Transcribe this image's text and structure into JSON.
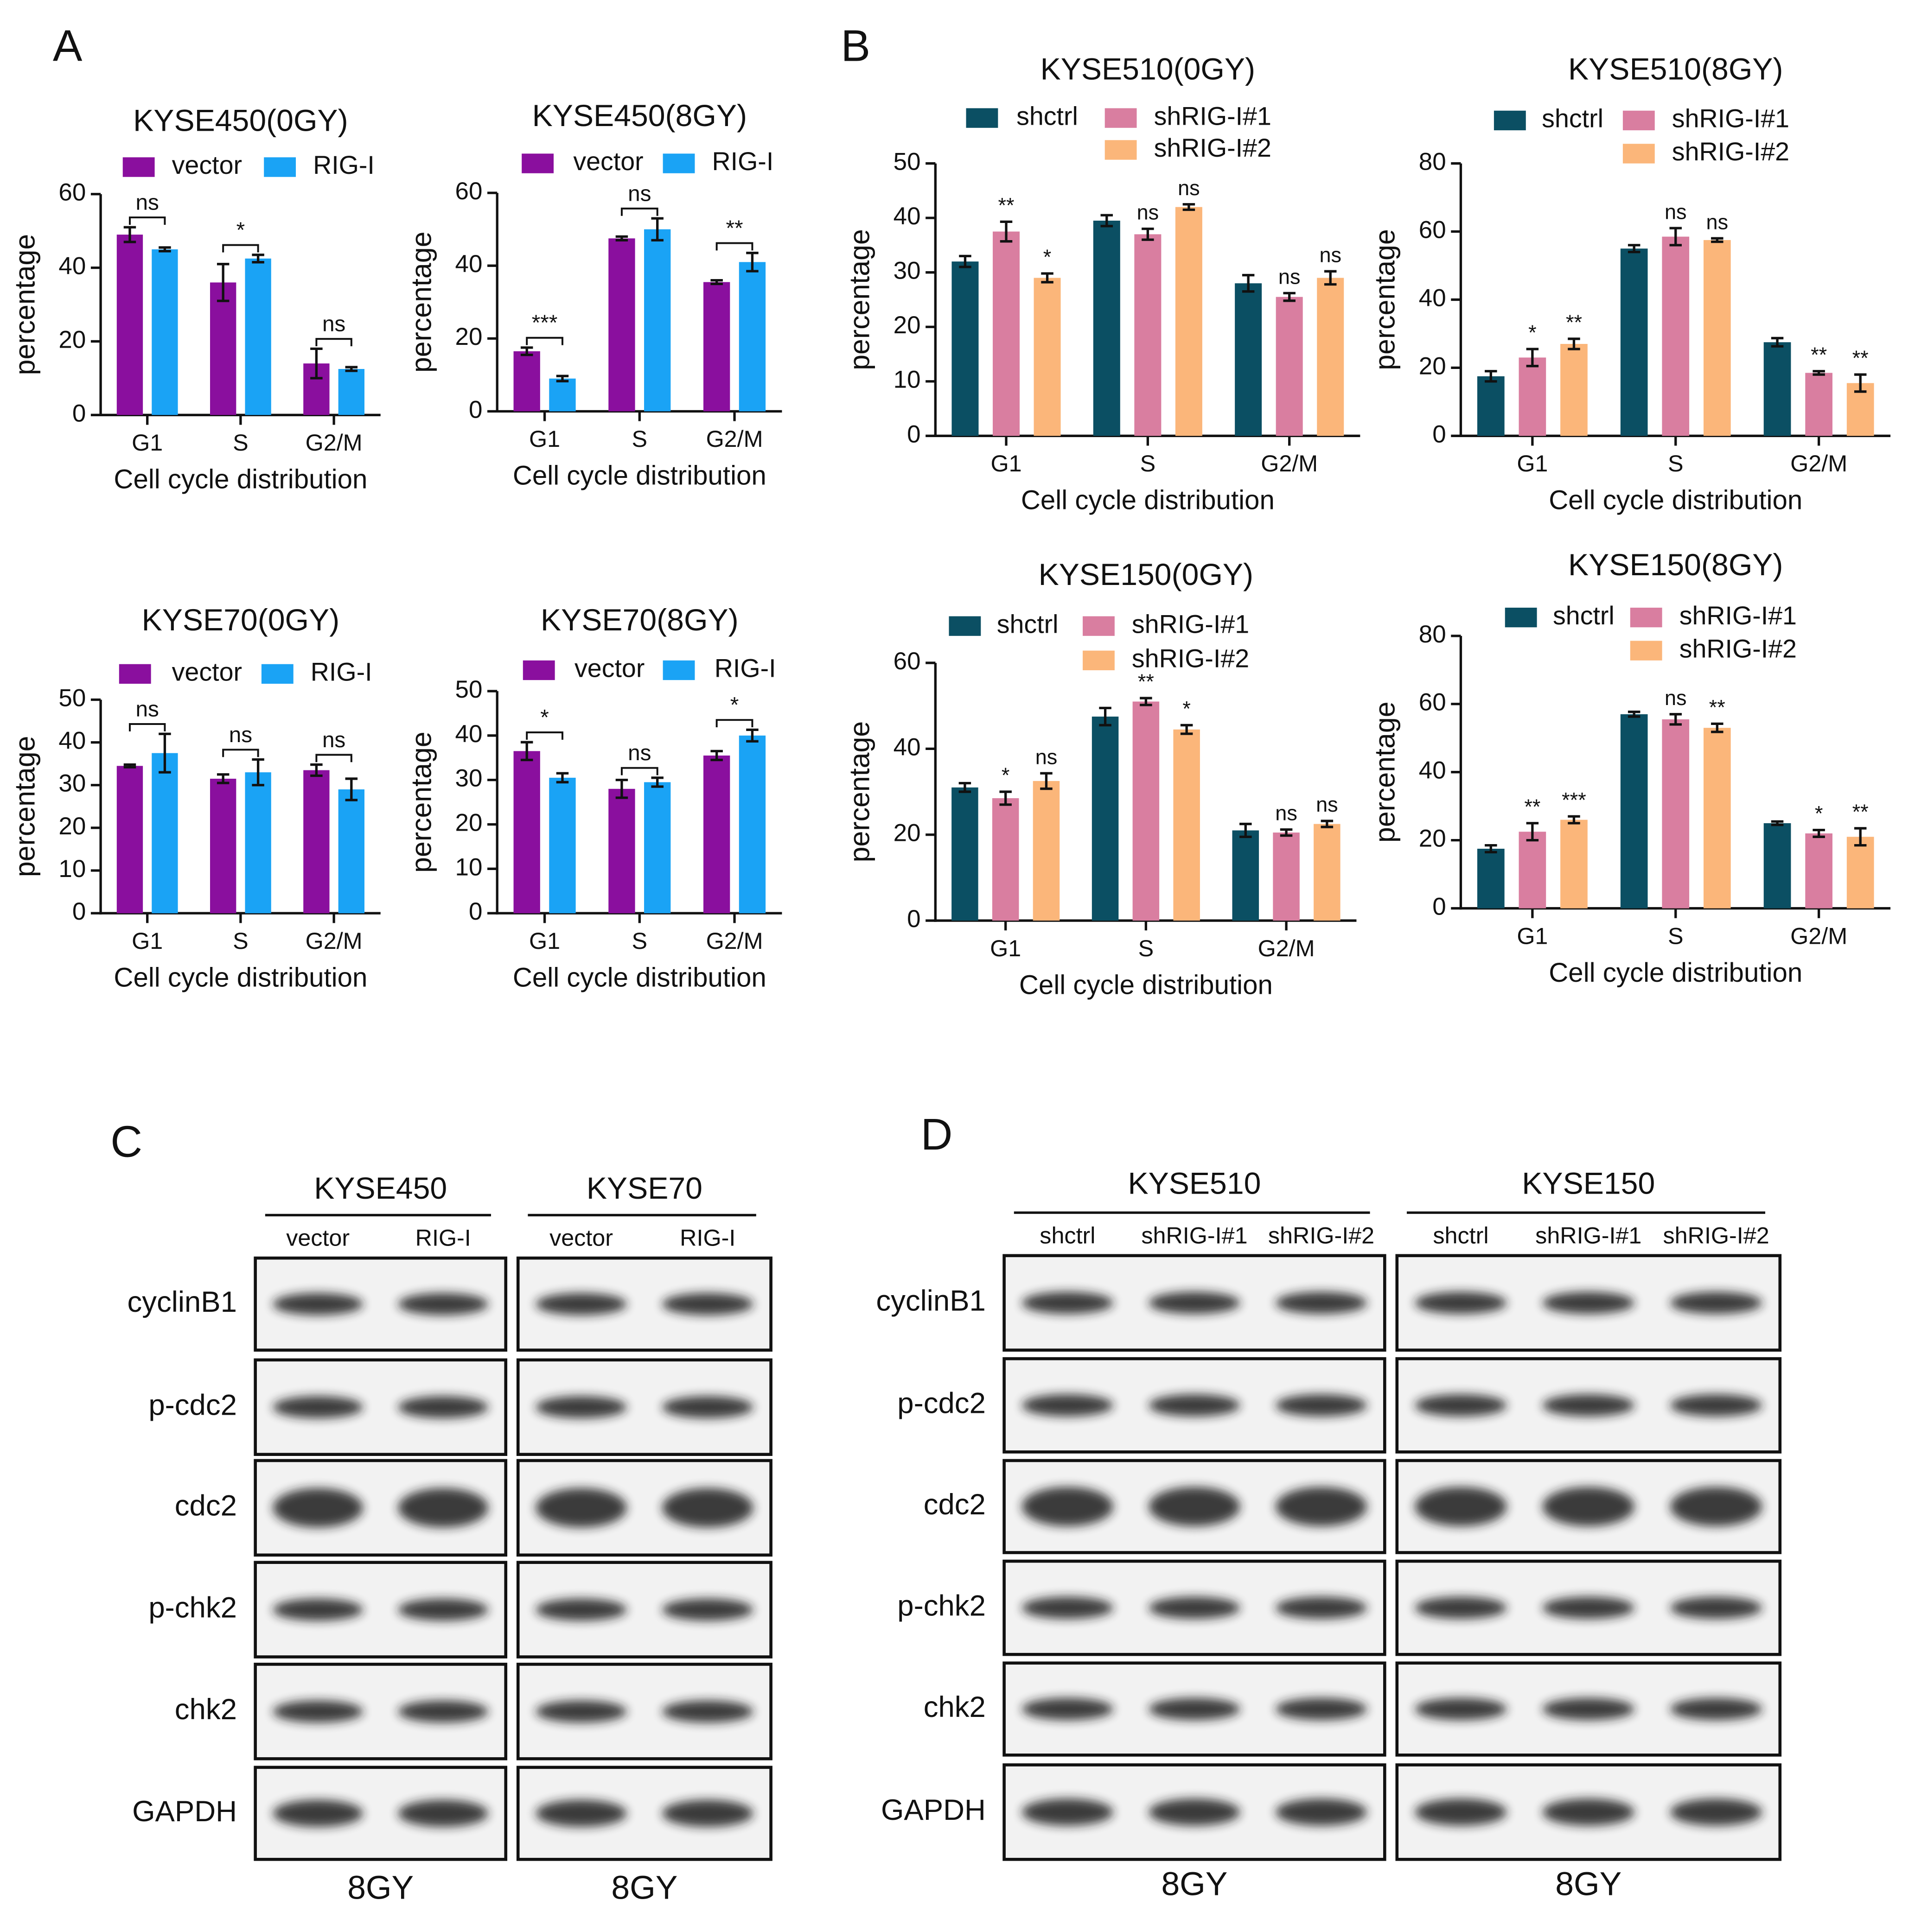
{
  "panel_labels": [
    "A",
    "B",
    "C",
    "D"
  ],
  "chart_data": [
    {
      "type": "bar",
      "title": "KYSE450(0GY)",
      "xlabel": "Cell cycle distribution",
      "ylabel": "percentage",
      "categories": [
        "G1",
        "S",
        "G2/M"
      ],
      "ylim": [
        0,
        60
      ],
      "yticks": [
        0,
        20,
        40,
        60
      ],
      "annotations": [
        "ns",
        "*",
        "ns"
      ],
      "series": [
        {
          "name": "vector",
          "color": "#8a0f9e",
          "values": [
            49,
            36,
            14
          ],
          "errors": [
            2,
            5,
            4
          ]
        },
        {
          "name": "RIG-I",
          "color": "#1aa3f5",
          "values": [
            45,
            42.5,
            12.5
          ],
          "errors": [
            0.5,
            1,
            0.5
          ]
        }
      ]
    },
    {
      "type": "bar",
      "title": "KYSE450(8GY)",
      "xlabel": "Cell cycle distribution",
      "ylabel": "percentage",
      "categories": [
        "G1",
        "S",
        "G2/M"
      ],
      "ylim": [
        0,
        60
      ],
      "yticks": [
        0,
        20,
        40,
        60
      ],
      "annotations": [
        "***",
        "ns",
        "**"
      ],
      "series": [
        {
          "name": "vector",
          "color": "#8a0f9e",
          "values": [
            16.5,
            47.5,
            35.5
          ],
          "errors": [
            1,
            0.5,
            0.5
          ]
        },
        {
          "name": "RIG-I",
          "color": "#1aa3f5",
          "values": [
            9,
            50,
            41
          ],
          "errors": [
            0.7,
            3,
            2.5
          ]
        }
      ]
    },
    {
      "type": "bar",
      "title": "KYSE70(0GY)",
      "xlabel": "Cell cycle distribution",
      "ylabel": "percentage",
      "categories": [
        "G1",
        "S",
        "G2/M"
      ],
      "ylim": [
        0,
        50
      ],
      "yticks": [
        0,
        10,
        20,
        30,
        40,
        50
      ],
      "annotations": [
        "ns",
        "ns",
        "ns"
      ],
      "series": [
        {
          "name": "vector",
          "color": "#8a0f9e",
          "values": [
            34.5,
            31.5,
            33.5
          ],
          "errors": [
            0.3,
            1,
            1.3
          ]
        },
        {
          "name": "RIG-I",
          "color": "#1aa3f5",
          "values": [
            37.5,
            33,
            29
          ],
          "errors": [
            4.5,
            3,
            2.5
          ]
        }
      ]
    },
    {
      "type": "bar",
      "title": "KYSE70(8GY)",
      "xlabel": "Cell cycle distribution",
      "ylabel": "percentage",
      "categories": [
        "G1",
        "S",
        "G2/M"
      ],
      "ylim": [
        0,
        50
      ],
      "yticks": [
        0,
        10,
        20,
        30,
        40,
        50
      ],
      "annotations": [
        "*",
        "ns",
        "*"
      ],
      "series": [
        {
          "name": "vector",
          "color": "#8a0f9e",
          "values": [
            36.5,
            28,
            35.5
          ],
          "errors": [
            2,
            2,
            1
          ]
        },
        {
          "name": "RIG-I",
          "color": "#1aa3f5",
          "values": [
            30.5,
            29.5,
            40
          ],
          "errors": [
            1,
            1,
            1.3
          ]
        }
      ]
    },
    {
      "type": "bar",
      "title": "KYSE510(0GY)",
      "xlabel": "Cell cycle distribution",
      "ylabel": "percentage",
      "categories": [
        "G1",
        "S",
        "G2/M"
      ],
      "ylim": [
        0,
        50
      ],
      "yticks": [
        0,
        10,
        20,
        30,
        40,
        50
      ],
      "series": [
        {
          "name": "shctrl",
          "color": "#0b4f63",
          "values": [
            32,
            39.5,
            28
          ],
          "errors": [
            1,
            1,
            1.5
          ]
        },
        {
          "name": "shRIG-I#1",
          "color": "#d97ea0",
          "values": [
            37.5,
            37,
            25.5
          ],
          "errors": [
            1.8,
            1,
            0.7
          ],
          "annotations": [
            "**",
            "ns",
            "ns"
          ]
        },
        {
          "name": "shRIG-I#2",
          "color": "#fbb67a",
          "values": [
            29,
            42,
            29
          ],
          "errors": [
            0.8,
            0.5,
            1.2
          ],
          "annotations": [
            "*",
            "ns",
            "ns"
          ]
        }
      ]
    },
    {
      "type": "bar",
      "title": "KYSE510(8GY)",
      "xlabel": "Cell cycle distribution",
      "ylabel": "percentage",
      "categories": [
        "G1",
        "S",
        "G2/M"
      ],
      "ylim": [
        0,
        80
      ],
      "yticks": [
        0,
        20,
        40,
        60,
        80
      ],
      "series": [
        {
          "name": "shctrl",
          "color": "#0b4f63",
          "values": [
            17.5,
            55,
            27.5
          ],
          "errors": [
            1.5,
            1,
            1.2
          ]
        },
        {
          "name": "shRIG-I#1",
          "color": "#d97ea0",
          "values": [
            23,
            58.5,
            18.5
          ],
          "errors": [
            2.5,
            2.5,
            0.5
          ],
          "annotations": [
            "*",
            "ns",
            "**"
          ]
        },
        {
          "name": "shRIG-I#2",
          "color": "#fbb67a",
          "values": [
            27,
            57.5,
            15.5
          ],
          "errors": [
            1.5,
            0.5,
            2.5
          ],
          "annotations": [
            "**",
            "ns",
            "**"
          ]
        }
      ]
    },
    {
      "type": "bar",
      "title": "KYSE150(0GY)",
      "xlabel": "Cell cycle distribution",
      "ylabel": "percentage",
      "categories": [
        "G1",
        "S",
        "G2/M"
      ],
      "ylim": [
        0,
        60
      ],
      "yticks": [
        0,
        20,
        40,
        60
      ],
      "series": [
        {
          "name": "shctrl",
          "color": "#0b4f63",
          "values": [
            31,
            47.5,
            21
          ],
          "errors": [
            1,
            2,
            1.5
          ]
        },
        {
          "name": "shRIG-I#1",
          "color": "#d97ea0",
          "values": [
            28.5,
            51,
            20.5
          ],
          "errors": [
            1.5,
            0.8,
            0.7
          ],
          "annotations": [
            "*",
            "**",
            "ns"
          ]
        },
        {
          "name": "shRIG-I#2",
          "color": "#fbb67a",
          "values": [
            32.5,
            44.5,
            22.5
          ],
          "errors": [
            1.8,
            1,
            0.7
          ],
          "annotations": [
            "ns",
            "*",
            "ns"
          ]
        }
      ]
    },
    {
      "type": "bar",
      "title": "KYSE150(8GY)",
      "xlabel": "Cell cycle distribution",
      "ylabel": "percentage",
      "categories": [
        "G1",
        "S",
        "G2/M"
      ],
      "ylim": [
        0,
        80
      ],
      "yticks": [
        0,
        20,
        40,
        60,
        80
      ],
      "series": [
        {
          "name": "shctrl",
          "color": "#0b4f63",
          "values": [
            17.5,
            57,
            25
          ],
          "errors": [
            1,
            0.7,
            0.5
          ]
        },
        {
          "name": "shRIG-I#1",
          "color": "#d97ea0",
          "values": [
            22.5,
            55.5,
            22
          ],
          "errors": [
            2.5,
            1.5,
            1
          ],
          "annotations": [
            "**",
            "ns",
            "*"
          ]
        },
        {
          "name": "shRIG-I#2",
          "color": "#fbb67a",
          "values": [
            26,
            53,
            21
          ],
          "errors": [
            1,
            1.2,
            2.5
          ],
          "annotations": [
            "***",
            "**",
            "**"
          ]
        }
      ]
    }
  ],
  "blots": [
    {
      "rows": [
        "cyclinB1",
        "p-cdc2",
        "cdc2",
        "p-chk2",
        "chk2",
        "GAPDH"
      ],
      "groups": [
        {
          "title": "KYSE450",
          "lanes": [
            "vector",
            "RIG-I"
          ],
          "footer": "8GY"
        },
        {
          "title": "KYSE70",
          "lanes": [
            "vector",
            "RIG-I"
          ],
          "footer": "8GY"
        }
      ]
    },
    {
      "rows": [
        "cyclinB1",
        "p-cdc2",
        "cdc2",
        "p-chk2",
        "chk2",
        "GAPDH"
      ],
      "groups": [
        {
          "title": "KYSE510",
          "lanes": [
            "shctrl",
            "shRIG-I#1",
            "shRIG-I#2"
          ],
          "footer": "8GY"
        },
        {
          "title": "KYSE150",
          "lanes": [
            "shctrl",
            "shRIG-I#1",
            "shRIG-I#2"
          ],
          "footer": "8GY"
        }
      ]
    }
  ]
}
